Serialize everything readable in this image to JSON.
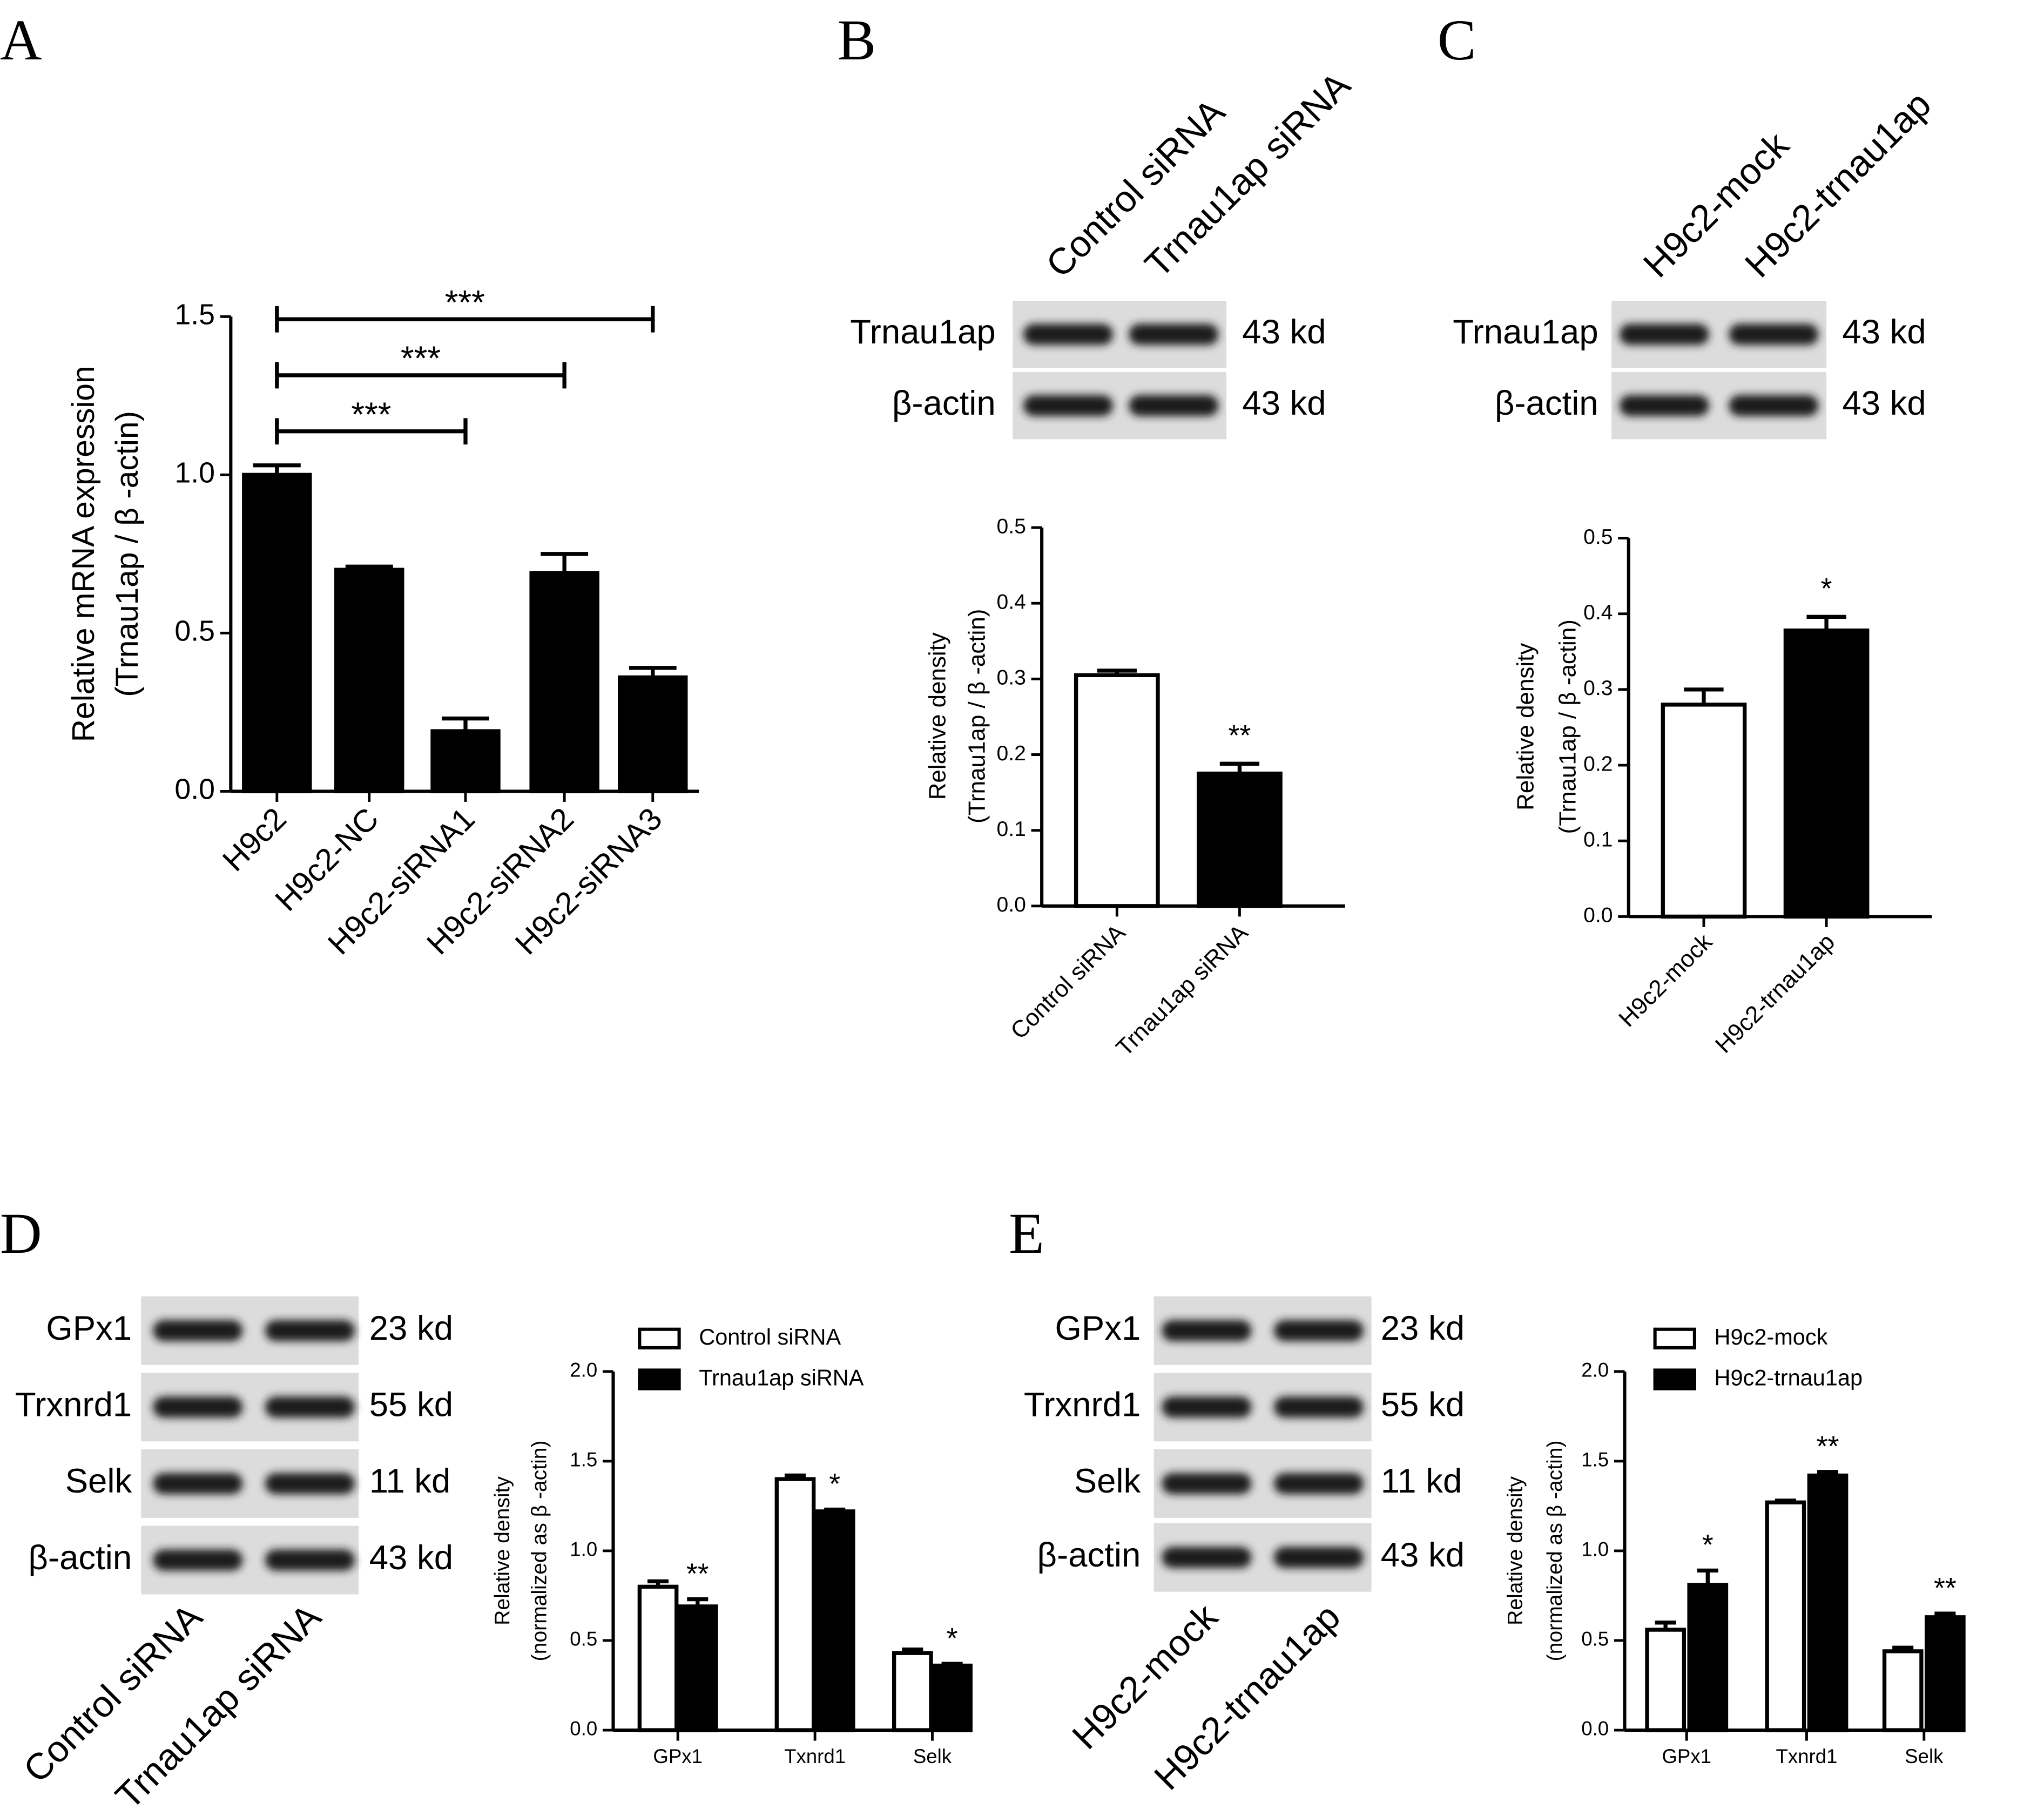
{
  "chart_data": [
    {
      "type": "bar",
      "panel": "A",
      "ylabel": [
        "Relative mRNA expression",
        "(Trnau1ap / β -actin)"
      ],
      "categories": [
        "H9c2",
        "H9c2-NC",
        "H9c2-siRNA1",
        "H9c2-siRNA2",
        "H9c2-siRNA3"
      ],
      "values": [
        1.0,
        0.7,
        0.19,
        0.69,
        0.36
      ],
      "errors": [
        0.03,
        0.01,
        0.04,
        0.06,
        0.03
      ],
      "colors": [
        "#000000",
        "#000000",
        "#000000",
        "#000000",
        "#000000"
      ],
      "comparisons": [
        {
          "from": "H9c2",
          "to": "H9c2-siRNA1",
          "label": "***"
        },
        {
          "from": "H9c2",
          "to": "H9c2-siRNA2",
          "label": "***"
        },
        {
          "from": "H9c2",
          "to": "H9c2-siRNA3",
          "label": "***"
        }
      ],
      "ylim": [
        0,
        1.5
      ],
      "yticks": [
        {
          "value": 0,
          "label": "0.0"
        },
        0.5,
        {
          "value": 1,
          "label": "1.0"
        },
        1.5
      ]
    },
    {
      "type": "bar",
      "ylabel": [
        "Relative density",
        "(Trnau1ap / β -actin)"
      ],
      "categories": [
        "Control siRNA",
        "Trnau1ap siRNA"
      ],
      "values": [
        0.305,
        0.175
      ],
      "errors": [
        0.006,
        0.013
      ],
      "colors": [
        "#ffffff",
        "#000000"
      ],
      "significance": [
        null,
        "**"
      ],
      "ylim": [
        0,
        0.5
      ],
      "yticks": [
        {
          "value": 0,
          "label": "0.0"
        },
        0.1,
        0.2,
        0.3,
        0.4,
        0.5
      ]
    },
    {
      "type": "bar",
      "ylabel": [
        "Relative density",
        "(Trnau1ap / β -actin)"
      ],
      "categories": [
        "H9c2-mock",
        "H9c2-trnau1ap"
      ],
      "values": [
        0.28,
        0.378
      ],
      "errors": [
        0.02,
        0.018
      ],
      "colors": [
        "#ffffff",
        "#000000"
      ],
      "significance": [
        null,
        "*"
      ],
      "ylim": [
        0,
        0.5
      ],
      "yticks": [
        {
          "value": 0,
          "label": "0.0"
        },
        0.1,
        0.2,
        0.3,
        0.4,
        0.5
      ]
    },
    {
      "type": "bar",
      "ylabel": [
        "Relative density",
        "(normalized as β -actin)"
      ],
      "categories": [
        "GPx1",
        "Txnrd1",
        "Selk"
      ],
      "series": [
        {
          "name": "Control siRNA",
          "color": "#ffffff",
          "values": [
            0.8,
            1.4,
            0.43
          ],
          "errors": [
            0.03,
            0.02,
            0.02
          ]
        },
        {
          "name": "Trnau1ap siRNA",
          "color": "#000000",
          "values": [
            0.69,
            1.22,
            0.36
          ],
          "errors": [
            0.04,
            0.01,
            0.01
          ]
        }
      ],
      "significance": [
        "**",
        "*",
        "*"
      ],
      "ylim": [
        0,
        2
      ],
      "yticks": [
        {
          "value": 0,
          "label": "0.0"
        },
        0.5,
        {
          "value": 1,
          "label": "1.0"
        },
        1.5,
        {
          "value": 2,
          "label": "2.0"
        }
      ]
    },
    {
      "type": "bar",
      "ylabel": [
        "Relative density",
        "(normalized as β -actin)"
      ],
      "categories": [
        "GPx1",
        "Txnrd1",
        "Selk"
      ],
      "series": [
        {
          "name": "H9c2-mock",
          "color": "#ffffff",
          "values": [
            0.56,
            1.27,
            0.44
          ],
          "errors": [
            0.04,
            0.01,
            0.02
          ]
        },
        {
          "name": "H9c2-trnau1ap",
          "color": "#000000",
          "values": [
            0.81,
            1.42,
            0.63
          ],
          "errors": [
            0.08,
            0.02,
            0.02
          ]
        }
      ],
      "significance": [
        "*",
        "**",
        "**"
      ],
      "ylim": [
        0,
        2
      ],
      "yticks": [
        {
          "value": 0,
          "label": "0.0"
        },
        0.5,
        {
          "value": 1,
          "label": "1.0"
        },
        1.5,
        {
          "value": 2,
          "label": "2.0"
        }
      ]
    }
  ],
  "blots": [
    {
      "panel": "B",
      "lanes": [
        "Control siRNA",
        "Trnau1ap siRNA"
      ],
      "rows": [
        {
          "protein": "Trnau1ap",
          "size": "43 kd"
        },
        {
          "protein": "β-actin",
          "size": "43 kd"
        }
      ]
    },
    {
      "panel": "C",
      "lanes": [
        "H9c2-mock",
        "H9c2-trnau1ap"
      ],
      "rows": [
        {
          "protein": "Trnau1ap",
          "size": "43 kd"
        },
        {
          "protein": "β-actin",
          "size": "43 kd"
        }
      ]
    },
    {
      "panel": "D",
      "lanes": [
        "Control siRNA",
        "Trnau1ap siRNA"
      ],
      "rows": [
        {
          "protein": "GPx1",
          "size": "23 kd"
        },
        {
          "protein": "Trxnrd1",
          "size": "55 kd"
        },
        {
          "protein": "Selk",
          "size": "11 kd"
        },
        {
          "protein": "β-actin",
          "size": "43 kd"
        }
      ]
    },
    {
      "panel": "E",
      "lanes": [
        "H9c2-mock",
        "H9c2-trnau1ap"
      ],
      "rows": [
        {
          "protein": "GPx1",
          "size": "23 kd"
        },
        {
          "protein": "Trxnrd1",
          "size": "55 kd"
        },
        {
          "protein": "Selk",
          "size": "11 kd"
        },
        {
          "protein": "β-actin",
          "size": "43 kd"
        }
      ]
    }
  ]
}
